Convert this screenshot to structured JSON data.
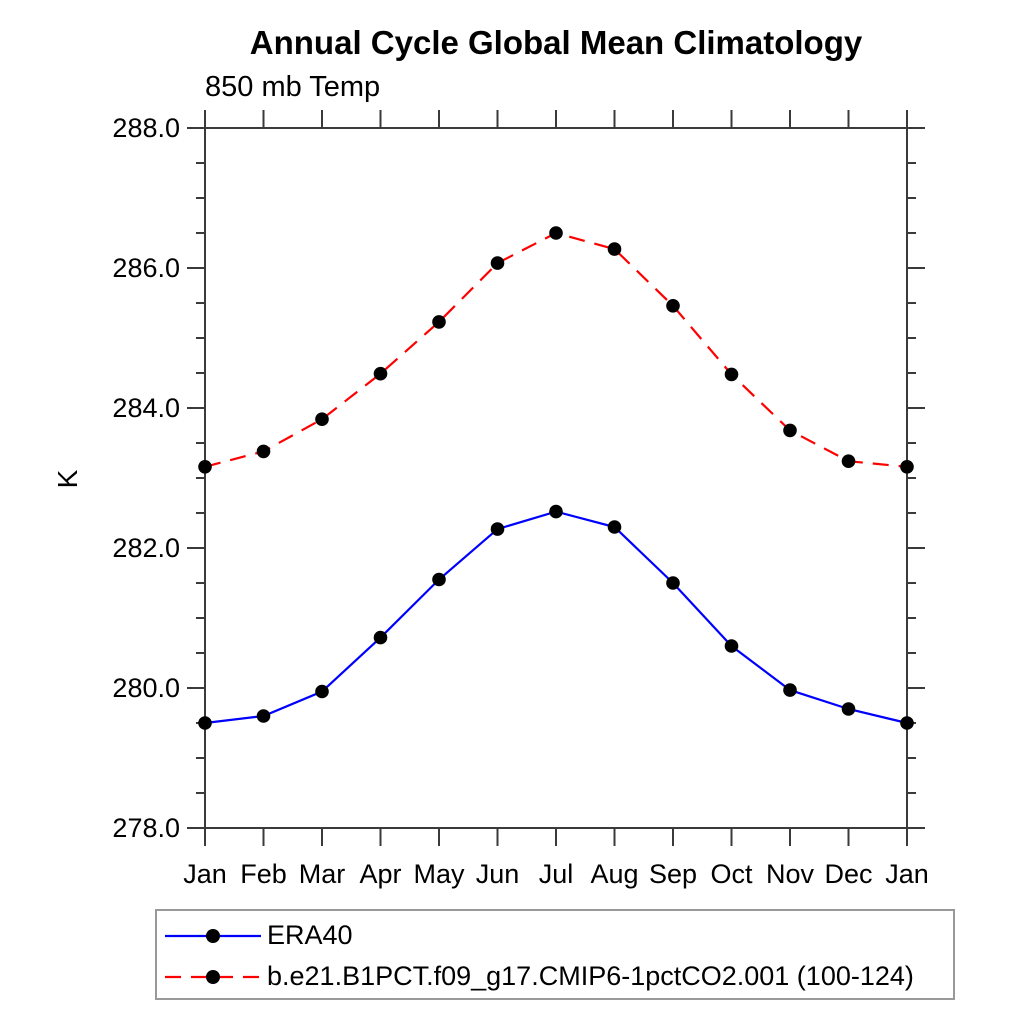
{
  "title": "Annual Cycle Global Mean Climatology",
  "subtitle": "850 mb Temp",
  "chart_data": {
    "type": "line",
    "categories": [
      "Jan",
      "Feb",
      "Mar",
      "Apr",
      "May",
      "Jun",
      "Jul",
      "Aug",
      "Sep",
      "Oct",
      "Nov",
      "Dec",
      "Jan"
    ],
    "xlabel": "",
    "ylabel": "K",
    "ylim": [
      278.0,
      288.0
    ],
    "y_major_step": 2.0,
    "y_minor_step": 0.5,
    "y_tick_labels": [
      "278.0",
      "280.0",
      "282.0",
      "284.0",
      "286.0",
      "288.0"
    ],
    "grid": false,
    "legend_position": "bottom-left",
    "series": [
      {
        "name": "ERA40",
        "color": "#0000ff",
        "line_style": "solid",
        "marker": "filled-circle",
        "marker_color": "#000000",
        "values": [
          279.5,
          279.6,
          279.95,
          280.72,
          281.55,
          282.27,
          282.52,
          282.3,
          281.5,
          280.6,
          279.97,
          279.7,
          279.5
        ]
      },
      {
        "name": "b.e21.B1PCT.f09_g17.CMIP6-1pctCO2.001 (100-124)",
        "color": "#ff0000",
        "line_style": "dashed",
        "marker": "filled-circle",
        "marker_color": "#000000",
        "values": [
          283.16,
          283.38,
          283.84,
          284.49,
          285.23,
          286.07,
          286.5,
          286.27,
          285.46,
          284.48,
          283.68,
          283.24,
          283.16
        ]
      }
    ]
  },
  "colors": {
    "axis": "#3a3a3a",
    "text": "#000000",
    "background": "#ffffff",
    "legend_border": "#999999"
  }
}
